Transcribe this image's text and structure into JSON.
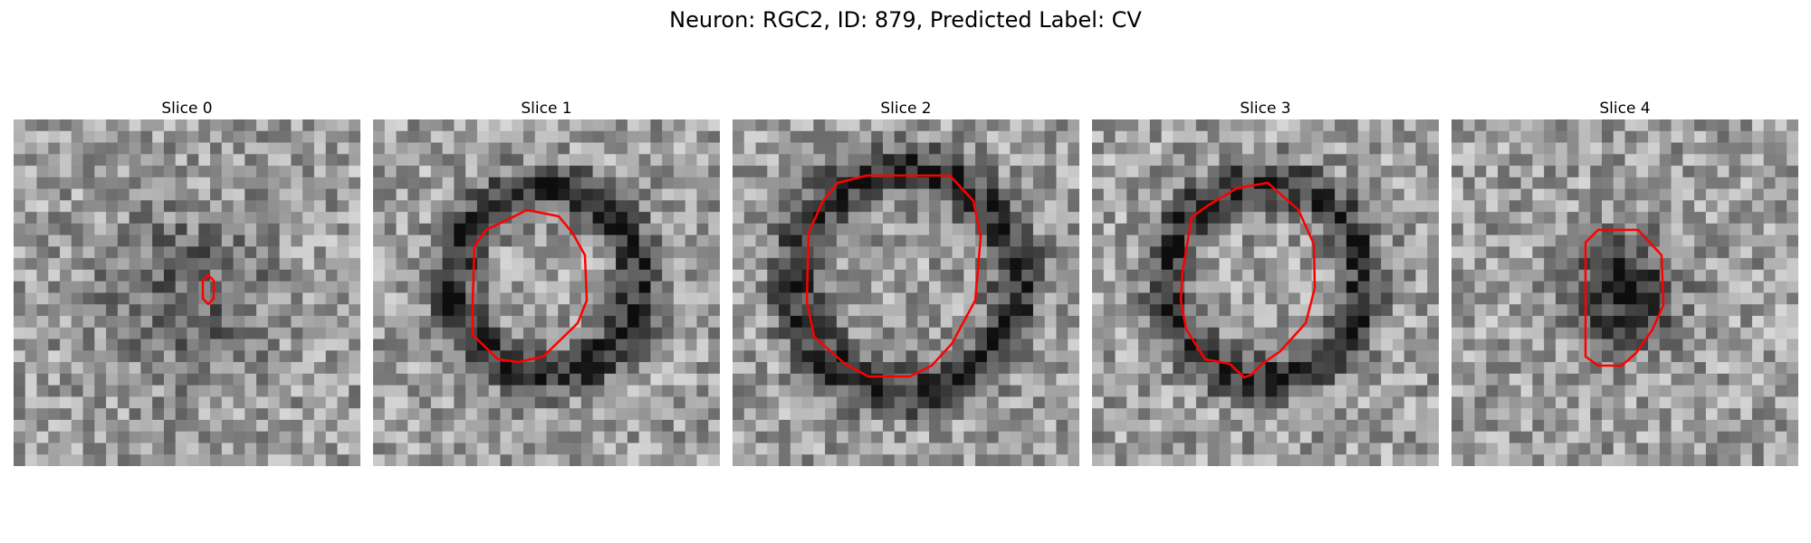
{
  "figure": {
    "title": "Neuron: RGC2, ID: 879, Predicted Label: CV",
    "contour_color": "#ff0000"
  },
  "panels": [
    {
      "title": "Slice 0"
    },
    {
      "title": "Slice 1"
    },
    {
      "title": "Slice 2"
    },
    {
      "title": "Slice 3"
    },
    {
      "title": "Slice 4"
    }
  ]
}
